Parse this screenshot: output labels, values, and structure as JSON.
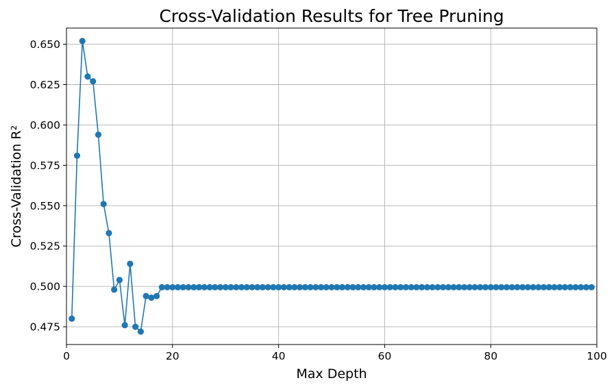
{
  "chart_data": {
    "type": "line",
    "title": "Cross-Validation Results for Tree Pruning",
    "xlabel": "Max Depth",
    "ylabel": "Cross-Validation R²",
    "xlim": [
      0,
      100
    ],
    "ylim": [
      0.464,
      0.66
    ],
    "xticks": [
      0,
      20,
      40,
      60,
      80,
      100
    ],
    "xtick_labels": [
      "0",
      "20",
      "40",
      "60",
      "80",
      "100"
    ],
    "yticks": [
      0.475,
      0.5,
      0.525,
      0.55,
      0.575,
      0.6,
      0.625,
      0.65
    ],
    "ytick_labels": [
      "0.475",
      "0.500",
      "0.525",
      "0.550",
      "0.575",
      "0.600",
      "0.625",
      "0.650"
    ],
    "grid": true,
    "marker": "circle",
    "series": [
      {
        "color": "#1f77b4",
        "x": [
          1,
          2,
          3,
          4,
          5,
          6,
          7,
          8,
          9,
          10,
          11,
          12,
          13,
          14,
          15,
          16,
          17,
          18,
          19,
          20,
          21,
          22,
          23,
          24,
          25,
          26,
          27,
          28,
          29,
          30,
          31,
          32,
          33,
          34,
          35,
          36,
          37,
          38,
          39,
          40,
          41,
          42,
          43,
          44,
          45,
          46,
          47,
          48,
          49,
          50,
          51,
          52,
          53,
          54,
          55,
          56,
          57,
          58,
          59,
          60,
          61,
          62,
          63,
          64,
          65,
          66,
          67,
          68,
          69,
          70,
          71,
          72,
          73,
          74,
          75,
          76,
          77,
          78,
          79,
          80,
          81,
          82,
          83,
          84,
          85,
          86,
          87,
          88,
          89,
          90,
          91,
          92,
          93,
          94,
          95,
          96,
          97,
          98,
          99
        ],
        "y": [
          0.48,
          0.581,
          0.652,
          0.63,
          0.627,
          0.594,
          0.551,
          0.533,
          0.498,
          0.504,
          0.476,
          0.514,
          0.475,
          0.472,
          0.494,
          0.493,
          0.494,
          0.4995,
          0.4995,
          0.4995,
          0.4995,
          0.4995,
          0.4995,
          0.4995,
          0.4995,
          0.4995,
          0.4995,
          0.4995,
          0.4995,
          0.4995,
          0.4995,
          0.4995,
          0.4995,
          0.4995,
          0.4995,
          0.4995,
          0.4995,
          0.4995,
          0.4995,
          0.4995,
          0.4995,
          0.4995,
          0.4995,
          0.4995,
          0.4995,
          0.4995,
          0.4995,
          0.4995,
          0.4995,
          0.4995,
          0.4995,
          0.4995,
          0.4995,
          0.4995,
          0.4995,
          0.4995,
          0.4995,
          0.4995,
          0.4995,
          0.4995,
          0.4995,
          0.4995,
          0.4995,
          0.4995,
          0.4995,
          0.4995,
          0.4995,
          0.4995,
          0.4995,
          0.4995,
          0.4995,
          0.4995,
          0.4995,
          0.4995,
          0.4995,
          0.4995,
          0.4995,
          0.4995,
          0.4995,
          0.4995,
          0.4995,
          0.4995,
          0.4995,
          0.4995,
          0.4995,
          0.4995,
          0.4995,
          0.4995,
          0.4995,
          0.4995,
          0.4995,
          0.4995,
          0.4995,
          0.4995,
          0.4995,
          0.4995,
          0.4995,
          0.4995,
          0.4995
        ]
      }
    ]
  }
}
